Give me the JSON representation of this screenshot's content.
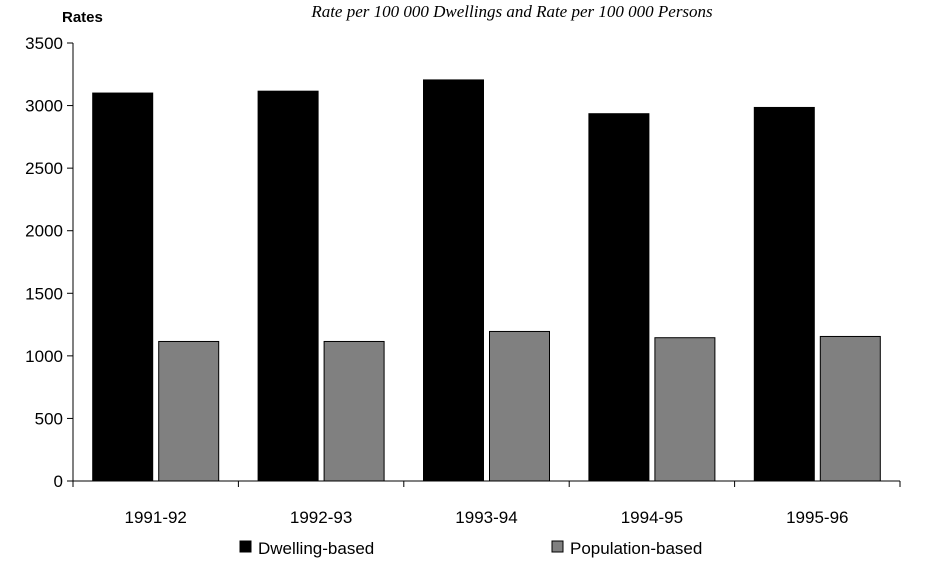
{
  "chart_data": {
    "type": "bar",
    "title": "Rate per 100 000 Dwellings and Rate per 100 000 Persons",
    "ylabel": "Rates",
    "xlabel": "",
    "categories": [
      "1991-92",
      "1992-93",
      "1993-94",
      "1994-95",
      "1995-96"
    ],
    "series": [
      {
        "name": "Dwelling-based",
        "values": [
          3100,
          3115,
          3205,
          2935,
          2985
        ],
        "color": "#000000"
      },
      {
        "name": "Population-based",
        "values": [
          1115,
          1115,
          1195,
          1145,
          1155
        ],
        "color": "#808080"
      }
    ],
    "ylim": [
      0,
      3500
    ],
    "yticks": [
      "0",
      "500",
      "1000",
      "1500",
      "2000",
      "2500",
      "3000",
      "3500"
    ],
    "grid": false,
    "legend_position": "bottom"
  }
}
